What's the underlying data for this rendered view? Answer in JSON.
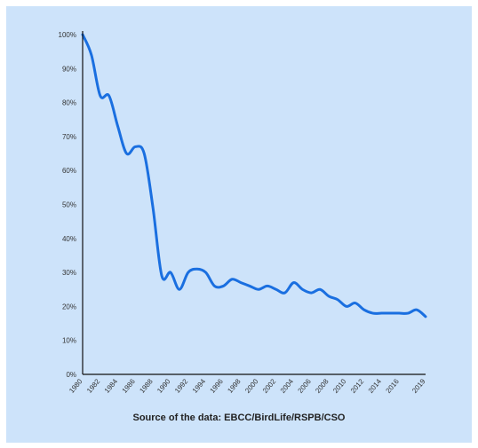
{
  "caption": "Source of the data: EBCC/BirdLife/RSPB/CSO",
  "colors": {
    "background": "#cde3fa",
    "line": "#1a6fe0",
    "axis": "#111111"
  },
  "chart_data": {
    "type": "line",
    "title": "",
    "xlabel": "",
    "ylabel": "",
    "xlim": [
      1980,
      2019
    ],
    "ylim": [
      0,
      100
    ],
    "y_unit": "%",
    "y_ticks": [
      0,
      10,
      20,
      30,
      40,
      50,
      60,
      70,
      80,
      90,
      100
    ],
    "y_tick_labels": [
      "0%",
      "10%",
      "20%",
      "30%",
      "40%",
      "50%",
      "60%",
      "70%",
      "80%",
      "90%",
      "100%"
    ],
    "x_ticks": [
      1980,
      1982,
      1984,
      1986,
      1988,
      1990,
      1992,
      1994,
      1996,
      1998,
      2000,
      2002,
      2004,
      2006,
      2008,
      2010,
      2012,
      2014,
      2016,
      2019
    ],
    "x_tick_labels": [
      "1980",
      "1982",
      "1984",
      "1986",
      "1988",
      "1990",
      "1992",
      "1994",
      "1996",
      "1998",
      "2000",
      "2002",
      "2004",
      "2006",
      "2008",
      "2010",
      "2012",
      "2014",
      "2016",
      "2019"
    ],
    "grid": false,
    "legend": "none",
    "series": [
      {
        "x": [
          1980,
          1981,
          1982,
          1983,
          1984,
          1985,
          1986,
          1987,
          1988,
          1989,
          1990,
          1991,
          1992,
          1993,
          1994,
          1995,
          1996,
          1997,
          1998,
          1999,
          2000,
          2001,
          2002,
          2003,
          2004,
          2005,
          2006,
          2007,
          2008,
          2009,
          2010,
          2011,
          2012,
          2013,
          2014,
          2015,
          2016,
          2017,
          2018,
          2019
        ],
        "values": [
          100,
          94,
          82,
          82,
          73,
          65,
          67,
          65,
          49,
          29,
          30,
          25,
          30,
          31,
          30,
          26,
          26,
          28,
          27,
          26,
          25,
          26,
          25,
          24,
          27,
          25,
          24,
          25,
          23,
          22,
          20,
          21,
          19,
          18,
          18,
          18,
          18,
          18,
          19,
          17
        ]
      }
    ]
  }
}
